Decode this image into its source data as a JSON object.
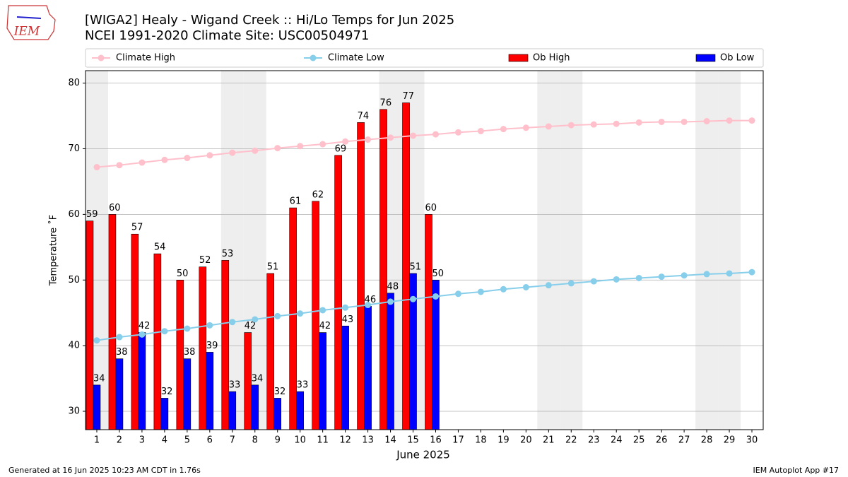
{
  "header": {
    "logo": "IEM"
  },
  "chart_data": {
    "type": "bar",
    "title": "[WIGA2] Healy - Wigand Creek :: Hi/Lo Temps for Jun 2025",
    "subtitle": "NCEI 1991-2020 Climate Site: USC00504971",
    "x_label": "June 2025",
    "y_label": "Temperature ˚F",
    "categories": [
      "1",
      "2",
      "3",
      "4",
      "5",
      "6",
      "7",
      "8",
      "9",
      "10",
      "11",
      "12",
      "13",
      "14",
      "15",
      "16",
      "17",
      "18",
      "19",
      "20",
      "21",
      "22",
      "23",
      "24",
      "25",
      "26",
      "27",
      "28",
      "29",
      "30"
    ],
    "shaded_categories": [
      "1",
      "7",
      "8",
      "14",
      "15",
      "21",
      "22",
      "28",
      "29"
    ],
    "shade_color": "#eeeeee",
    "ylim": [
      27.2,
      81.9
    ],
    "yticks": [
      30,
      40,
      50,
      60,
      70,
      80
    ],
    "grid": true,
    "series": [
      {
        "name": "Climate High",
        "kind": "line",
        "color": "#ffc0cb",
        "values": [
          67.2,
          67.5,
          67.9,
          68.3,
          68.6,
          69.0,
          69.4,
          69.7,
          70.1,
          70.4,
          70.7,
          71.1,
          71.4,
          71.7,
          72.0,
          72.2,
          72.5,
          72.7,
          73.0,
          73.2,
          73.4,
          73.6,
          73.7,
          73.8,
          74.0,
          74.1,
          74.1,
          74.2,
          74.3,
          74.3
        ]
      },
      {
        "name": "Climate Low",
        "kind": "line",
        "color": "#87ceeb",
        "values": [
          40.8,
          41.3,
          41.7,
          42.2,
          42.6,
          43.1,
          43.6,
          44.0,
          44.5,
          44.9,
          45.4,
          45.8,
          46.2,
          46.7,
          47.1,
          47.5,
          47.9,
          48.2,
          48.6,
          48.9,
          49.2,
          49.5,
          49.8,
          50.1,
          50.3,
          50.5,
          50.7,
          50.9,
          51.0,
          51.2
        ]
      },
      {
        "name": "Ob High",
        "kind": "bar",
        "color": "#ff0000",
        "values": [
          59,
          60,
          57,
          54,
          50,
          52,
          53,
          42,
          51,
          61,
          62,
          69,
          74,
          76,
          77,
          60,
          null,
          null,
          null,
          null,
          null,
          null,
          null,
          null,
          null,
          null,
          null,
          null,
          null,
          null
        ]
      },
      {
        "name": "Ob Low",
        "kind": "bar",
        "color": "#0000ff",
        "values": [
          34,
          38,
          42,
          32,
          38,
          39,
          33,
          34,
          32,
          33,
          42,
          43,
          46,
          48,
          51,
          50,
          null,
          null,
          null,
          null,
          null,
          null,
          null,
          null,
          null,
          null,
          null,
          null,
          null,
          null
        ]
      }
    ]
  },
  "footer": {
    "left": "Generated at 16 Jun 2025 10:23 AM CDT in 1.76s",
    "right": "IEM Autoplot App #17"
  }
}
